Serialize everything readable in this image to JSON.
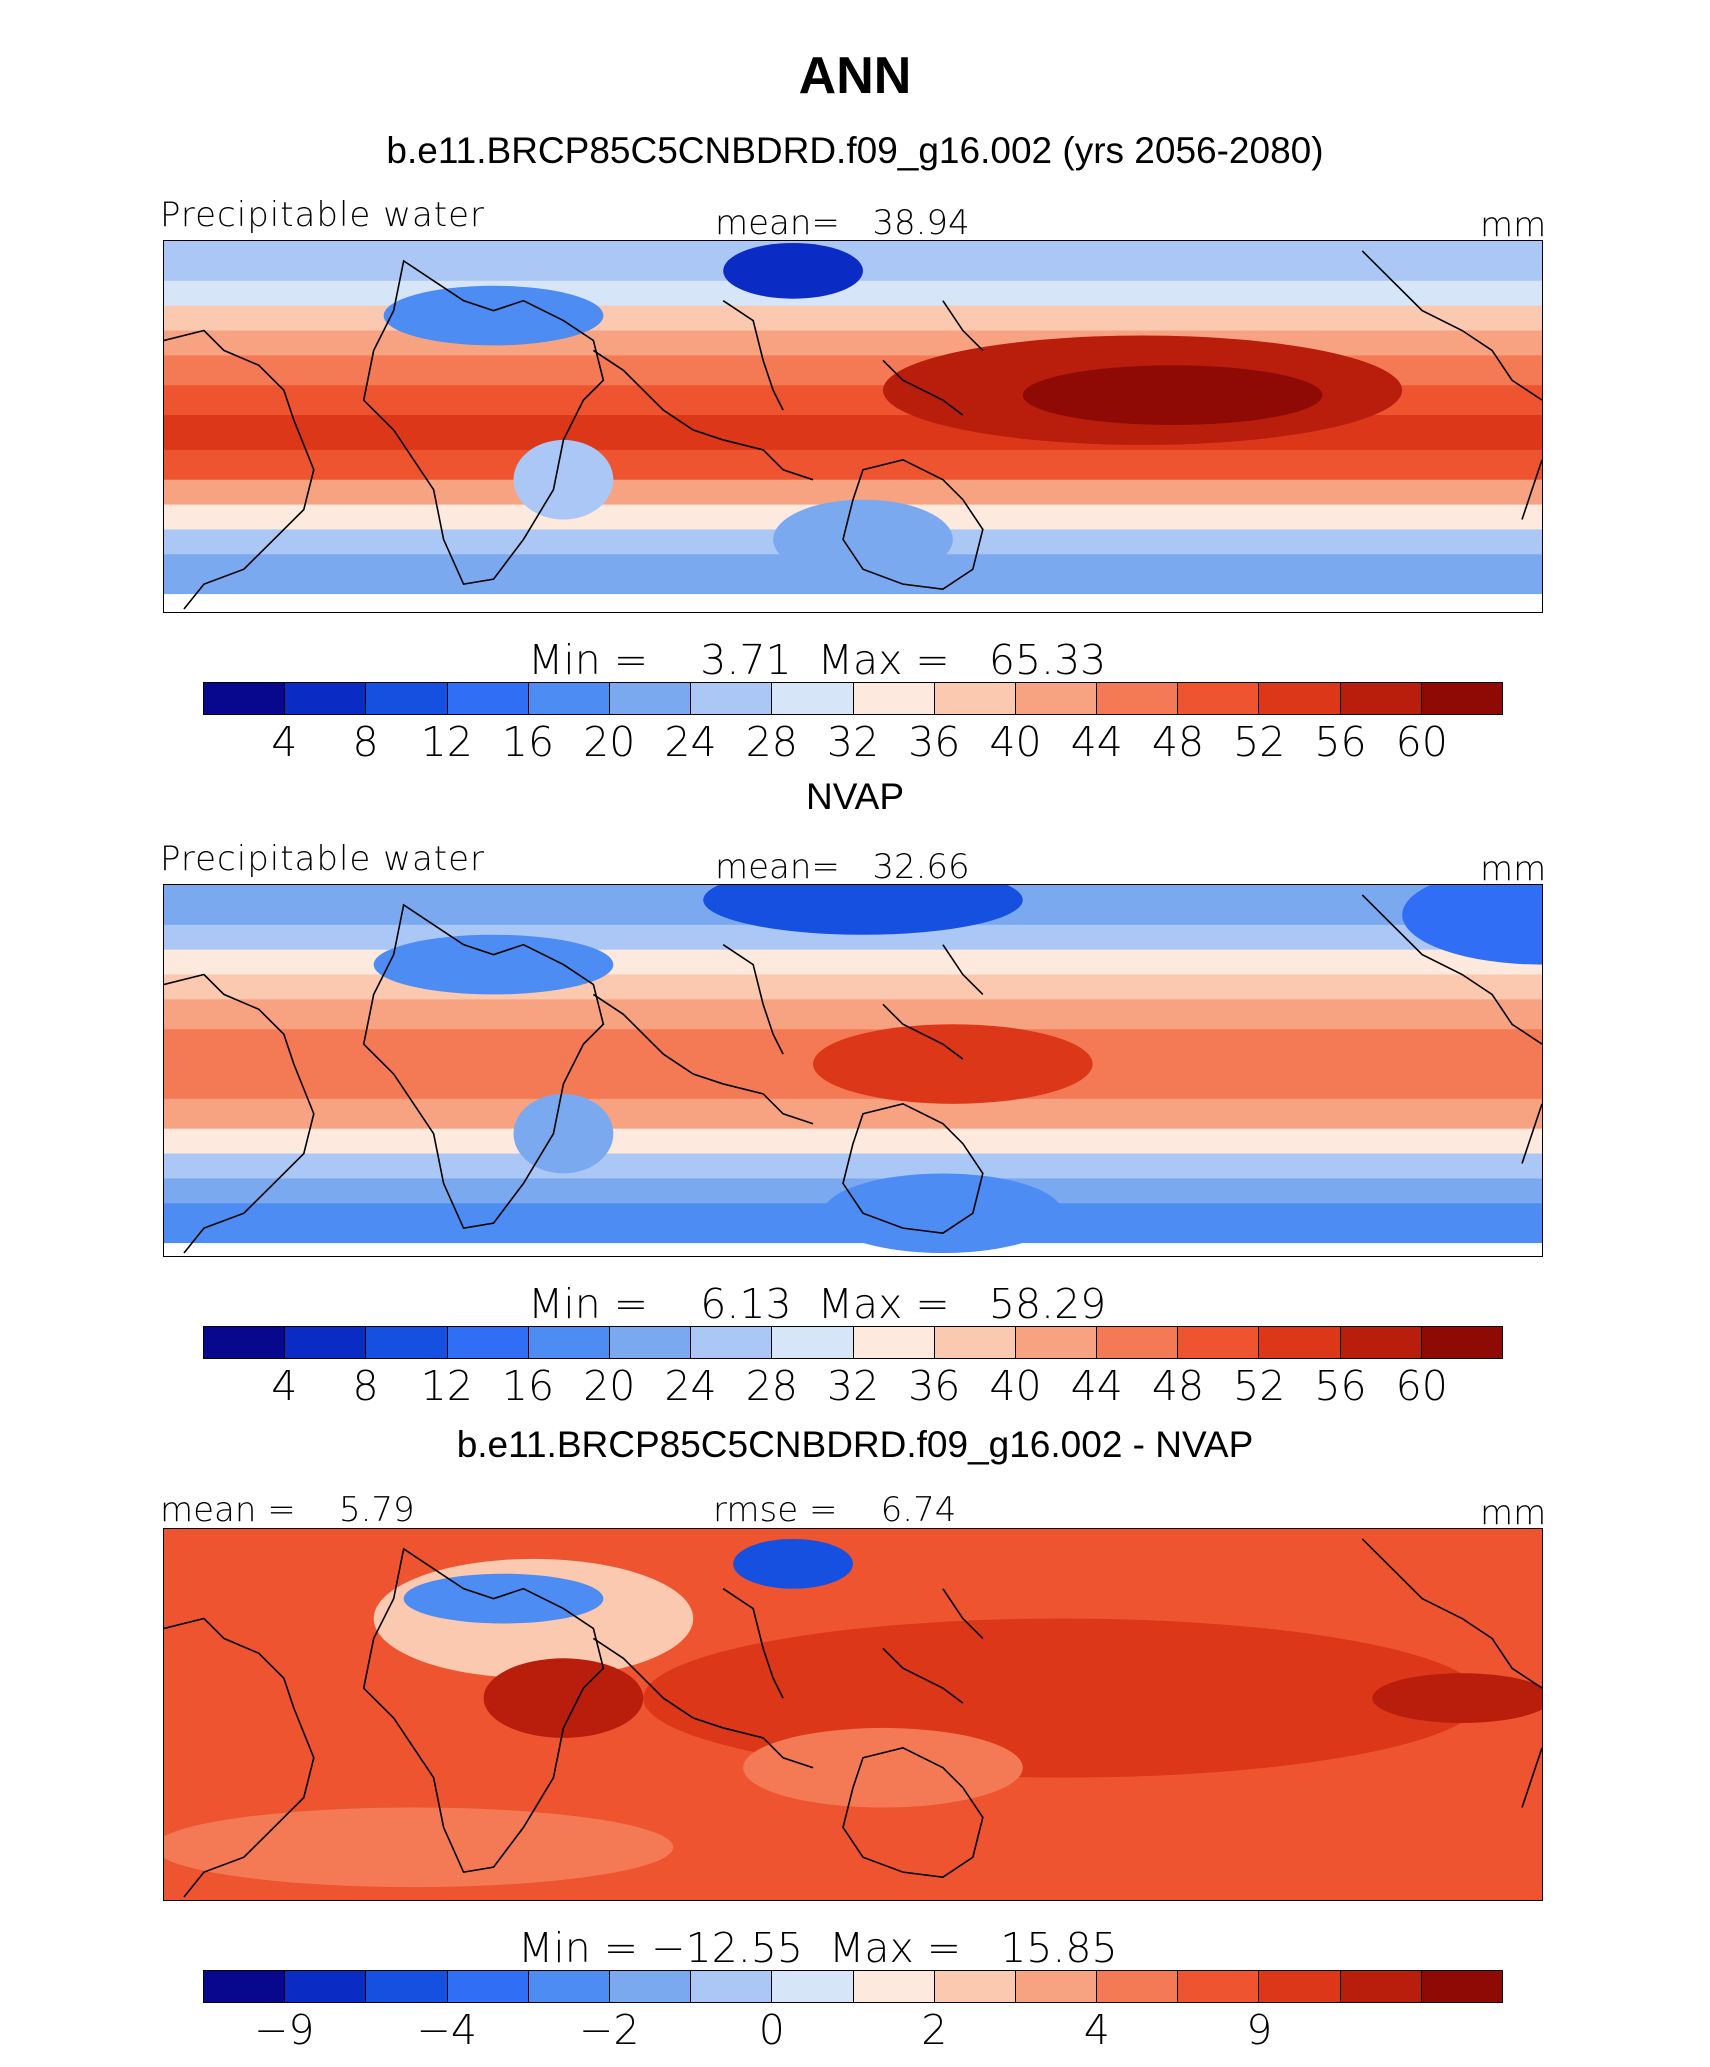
{
  "title": "ANN",
  "palette": [
    "#08088f",
    "#0a2cc4",
    "#1650e0",
    "#2f6ef5",
    "#4d8cf2",
    "#7aa9f0",
    "#aac7f5",
    "#d6e5f7",
    "#fde9dd",
    "#fbc8b0",
    "#f7a382",
    "#f47a55",
    "#ee5430",
    "#dc3718",
    "#b91d0c",
    "#8f0a05"
  ],
  "panels": [
    {
      "id": "model",
      "case_title": "b.e11.BRCP85C5CNBDRD.f09_g16.002 (yrs 2056-2080)",
      "left_label": "Precipitable water",
      "center_label": "mean=   38.94",
      "right_label": "mm",
      "minmax": "Min =    3.71  Max =   65.33",
      "ticks": [
        "4",
        "8",
        "12",
        "16",
        "20",
        "24",
        "28",
        "32",
        "36",
        "40",
        "44",
        "48",
        "52",
        "56",
        "60"
      ],
      "field": "model"
    },
    {
      "id": "obs",
      "case_title": "NVAP",
      "left_label": "Precipitable water",
      "center_label": "mean=   32.66",
      "right_label": "mm",
      "minmax": "Min =    6.13  Max =   58.29",
      "ticks": [
        "4",
        "8",
        "12",
        "16",
        "20",
        "24",
        "28",
        "32",
        "36",
        "40",
        "44",
        "48",
        "52",
        "56",
        "60"
      ],
      "field": "obs"
    },
    {
      "id": "diff",
      "case_title": "b.e11.BRCP85C5CNBDRD.f09_g16.002 - NVAP",
      "left_label": "mean =    5.79",
      "center_label": "rmse =    6.74",
      "right_label": "mm",
      "minmax": "Min = −12.55  Max =   15.85",
      "ticks": [
        "−9",
        "",
        "−4",
        "",
        "−2",
        "",
        "0",
        "",
        "2",
        "",
        "4",
        "",
        "9",
        "",
        ""
      ],
      "field": "diff"
    }
  ]
}
